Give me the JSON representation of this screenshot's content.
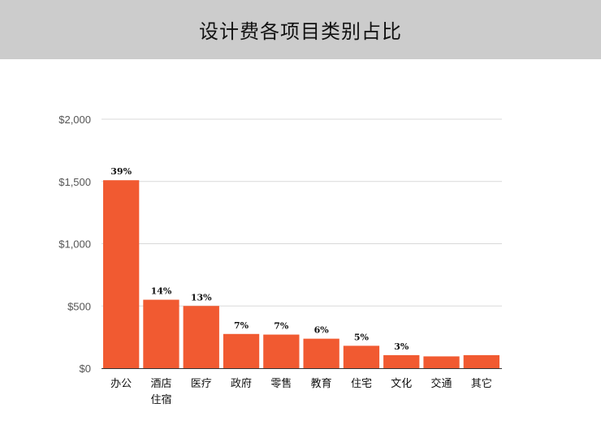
{
  "header": {
    "title": "设计费各项目类别占比"
  },
  "chart_data": {
    "type": "bar",
    "title": "设计费各项目类别占比",
    "categories": [
      [
        "办公"
      ],
      [
        "酒店",
        "住宿"
      ],
      [
        "医疗"
      ],
      [
        "政府"
      ],
      [
        "零售"
      ],
      [
        "教育"
      ],
      [
        "住宅"
      ],
      [
        "文化"
      ],
      [
        "交通"
      ],
      [
        "其它"
      ]
    ],
    "values": [
      1510,
      550,
      500,
      275,
      270,
      237,
      180,
      105,
      95,
      105
    ],
    "data_labels": [
      "39%",
      "14%",
      "13%",
      "7%",
      "7%",
      "6%",
      "5%",
      "3%",
      "",
      ""
    ],
    "y_ticks": [
      "$0",
      "$500",
      "$1,000",
      "$1,500",
      "$2,000"
    ],
    "y_tick_values": [
      0,
      500,
      1000,
      1500,
      2000
    ],
    "ylim": [
      0,
      2000
    ],
    "xlabel": "",
    "ylabel": "",
    "grid": true,
    "colors": {
      "bar": "#f15a31",
      "grid": "#d9d9d9",
      "axis": "#333333"
    }
  }
}
